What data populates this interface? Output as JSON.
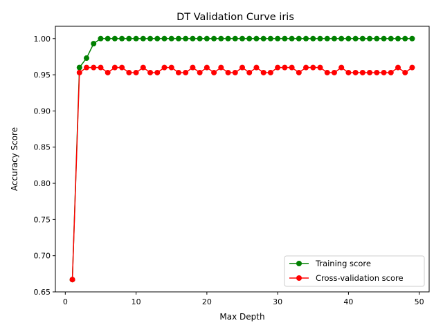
{
  "chart_data": {
    "type": "line",
    "title": "DT Validation Curve iris",
    "xlabel": "Max Depth",
    "ylabel": "Accuracy Score",
    "xlim": [
      -1.4,
      51.4
    ],
    "ylim": [
      0.65,
      1.017
    ],
    "xticks": [
      0,
      10,
      20,
      30,
      40,
      50
    ],
    "yticks": [
      0.65,
      0.7,
      0.75,
      0.8,
      0.85,
      0.9,
      0.95,
      1.0
    ],
    "xtick_labels": [
      "0",
      "10",
      "20",
      "30",
      "40",
      "50"
    ],
    "ytick_labels": [
      "0.65",
      "0.70",
      "0.75",
      "0.80",
      "0.85",
      "0.90",
      "0.95",
      "1.00"
    ],
    "grid": false,
    "legend_position": "lower-right",
    "x": [
      1,
      2,
      3,
      4,
      5,
      6,
      7,
      8,
      9,
      10,
      11,
      12,
      13,
      14,
      15,
      16,
      17,
      18,
      19,
      20,
      21,
      22,
      23,
      24,
      25,
      26,
      27,
      28,
      29,
      30,
      31,
      32,
      33,
      34,
      35,
      36,
      37,
      38,
      39,
      40,
      41,
      42,
      43,
      44,
      45,
      46,
      47,
      48,
      49
    ],
    "series": [
      {
        "name": "Training score",
        "color": "#008000",
        "values": [
          0.667,
          0.96,
          0.973,
          0.993,
          1.0,
          1.0,
          1.0,
          1.0,
          1.0,
          1.0,
          1.0,
          1.0,
          1.0,
          1.0,
          1.0,
          1.0,
          1.0,
          1.0,
          1.0,
          1.0,
          1.0,
          1.0,
          1.0,
          1.0,
          1.0,
          1.0,
          1.0,
          1.0,
          1.0,
          1.0,
          1.0,
          1.0,
          1.0,
          1.0,
          1.0,
          1.0,
          1.0,
          1.0,
          1.0,
          1.0,
          1.0,
          1.0,
          1.0,
          1.0,
          1.0,
          1.0,
          1.0,
          1.0,
          1.0
        ]
      },
      {
        "name": "Cross-validation score",
        "color": "#ff0000",
        "values": [
          0.667,
          0.953,
          0.96,
          0.96,
          0.96,
          0.953,
          0.96,
          0.96,
          0.953,
          0.953,
          0.96,
          0.953,
          0.953,
          0.96,
          0.96,
          0.953,
          0.953,
          0.96,
          0.953,
          0.96,
          0.953,
          0.96,
          0.953,
          0.953,
          0.96,
          0.953,
          0.96,
          0.953,
          0.953,
          0.96,
          0.96,
          0.96,
          0.953,
          0.96,
          0.96,
          0.96,
          0.953,
          0.953,
          0.96,
          0.953,
          0.953,
          0.953,
          0.953,
          0.953,
          0.953,
          0.953,
          0.96,
          0.953,
          0.96
        ]
      }
    ]
  }
}
